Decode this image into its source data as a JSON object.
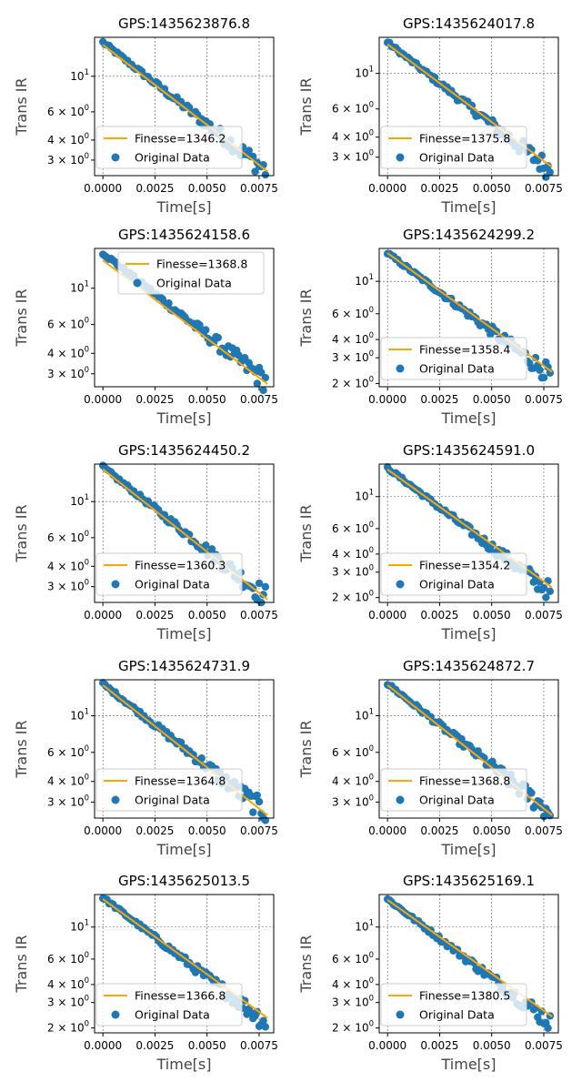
{
  "chart_data": [
    {
      "type": "scatter",
      "title": "GPS:1435623876.8",
      "xlabel": "Time[s]",
      "ylabel": "Trans IR",
      "yscale": "log",
      "xlim": [
        -0.0004,
        0.0082
      ],
      "ylim": [
        2.4,
        17.5
      ],
      "x_ticks": [
        "0.0000",
        "0.0025",
        "0.0050",
        "0.0075"
      ],
      "y_ticks": [
        {
          "value": 3,
          "label": "3 × 10^0"
        },
        {
          "value": 4,
          "label": "4 × 10^0"
        },
        {
          "value": 6,
          "label": "6 × 10^0"
        },
        {
          "value": 10,
          "label": "10^1"
        }
      ],
      "grid": true,
      "legend_position": "lower-left",
      "series": [
        {
          "name": "Finesse=1346.2",
          "kind": "fit-line",
          "color": "#ffa500",
          "x": [
            0.0,
            0.0079
          ],
          "y": [
            15.7,
            2.55
          ]
        },
        {
          "name": "Original Data",
          "kind": "scatter",
          "color": "#1f77b4",
          "x_range": [
            0.0,
            0.0078
          ],
          "y_start": 16.3,
          "y_end": 2.6
        }
      ]
    },
    {
      "type": "scatter",
      "title": "GPS:1435624017.8",
      "xlabel": "Time[s]",
      "ylabel": "Trans IR",
      "yscale": "log",
      "xlim": [
        -0.0004,
        0.0082
      ],
      "ylim": [
        2.3,
        16.8
      ],
      "x_ticks": [
        "0.0000",
        "0.0025",
        "0.0050",
        "0.0075"
      ],
      "y_ticks": [
        {
          "value": 3,
          "label": "3 × 10^0"
        },
        {
          "value": 4,
          "label": "4 × 10^0"
        },
        {
          "value": 6,
          "label": "6 × 10^0"
        },
        {
          "value": 10,
          "label": "10^1"
        }
      ],
      "grid": true,
      "legend_position": "lower-left",
      "series": [
        {
          "name": "Finesse=1375.8",
          "kind": "fit-line",
          "color": "#ffa500",
          "x": [
            0.0,
            0.0079
          ],
          "y": [
            15.2,
            2.6
          ]
        },
        {
          "name": "Original Data",
          "kind": "scatter",
          "color": "#1f77b4",
          "x_range": [
            0.0,
            0.0078
          ],
          "y_start": 15.6,
          "y_end": 2.5
        }
      ]
    },
    {
      "type": "scatter",
      "title": "GPS:1435624158.6",
      "xlabel": "Time[s]",
      "ylabel": "Trans IR",
      "yscale": "log",
      "xlim": [
        -0.0004,
        0.0082
      ],
      "ylim": [
        2.5,
        17.5
      ],
      "x_ticks": [
        "0.0000",
        "0.0025",
        "0.0050",
        "0.0075"
      ],
      "y_ticks": [
        {
          "value": 3,
          "label": "3 × 10^0"
        },
        {
          "value": 4,
          "label": "4 × 10^0"
        },
        {
          "value": 6,
          "label": "6 × 10^0"
        },
        {
          "value": 10,
          "label": "10^1"
        }
      ],
      "grid": false,
      "legend_position": "upper-right",
      "series": [
        {
          "name": "Finesse=1368.8",
          "kind": "fit-line",
          "color": "#ffa500",
          "x": [
            0.0,
            0.0079
          ],
          "y": [
            14.8,
            2.6
          ]
        },
        {
          "name": "Original Data",
          "kind": "scatter",
          "color": "#1f77b4",
          "x_range": [
            0.0,
            0.0078
          ],
          "y_start": 16.4,
          "y_end": 2.7
        }
      ]
    },
    {
      "type": "scatter",
      "title": "GPS:1435624299.2",
      "xlabel": "Time[s]",
      "ylabel": "Trans IR",
      "yscale": "log",
      "xlim": [
        -0.0004,
        0.0082
      ],
      "ylim": [
        1.9,
        16.8
      ],
      "x_ticks": [
        "0.0000",
        "0.0025",
        "0.0050",
        "0.0075"
      ],
      "y_ticks": [
        {
          "value": 2,
          "label": "2 × 10^0"
        },
        {
          "value": 3,
          "label": "3 × 10^0"
        },
        {
          "value": 4,
          "label": "4 × 10^0"
        },
        {
          "value": 6,
          "label": "6 × 10^0"
        },
        {
          "value": 10,
          "label": "10^1"
        }
      ],
      "grid": true,
      "legend_position": "lower-left",
      "series": [
        {
          "name": "Finesse=1358.4",
          "kind": "fit-line",
          "color": "#ffa500",
          "x": [
            0.0,
            0.0079
          ],
          "y": [
            15.6,
            2.4
          ]
        },
        {
          "name": "Original Data",
          "kind": "scatter",
          "color": "#1f77b4",
          "x_range": [
            0.0,
            0.0078
          ],
          "y_start": 15.6,
          "y_end": 2.3
        }
      ]
    },
    {
      "type": "scatter",
      "title": "GPS:1435624450.2",
      "xlabel": "Time[s]",
      "ylabel": "Trans IR",
      "yscale": "log",
      "xlim": [
        -0.0004,
        0.0082
      ],
      "ylim": [
        2.4,
        17.0
      ],
      "x_ticks": [
        "0.0000",
        "0.0025",
        "0.0050",
        "0.0075"
      ],
      "y_ticks": [
        {
          "value": 3,
          "label": "3 × 10^0"
        },
        {
          "value": 4,
          "label": "4 × 10^0"
        },
        {
          "value": 6,
          "label": "6 × 10^0"
        },
        {
          "value": 10,
          "label": "10^1"
        }
      ],
      "grid": true,
      "legend_position": "lower-left",
      "series": [
        {
          "name": "Finesse=1360.3",
          "kind": "fit-line",
          "color": "#ffa500",
          "x": [
            0.0,
            0.0079
          ],
          "y": [
            15.8,
            2.5
          ]
        },
        {
          "name": "Original Data",
          "kind": "scatter",
          "color": "#1f77b4",
          "x_range": [
            0.0,
            0.0078
          ],
          "y_start": 16.3,
          "y_end": 2.6
        }
      ]
    },
    {
      "type": "scatter",
      "title": "GPS:1435624591.0",
      "xlabel": "Time[s]",
      "ylabel": "Trans IR",
      "yscale": "log",
      "xlim": [
        -0.0004,
        0.0082
      ],
      "ylim": [
        1.85,
        16.8
      ],
      "x_ticks": [
        "0.0000",
        "0.0025",
        "0.0050",
        "0.0075"
      ],
      "y_ticks": [
        {
          "value": 2,
          "label": "2 × 10^0"
        },
        {
          "value": 3,
          "label": "3 × 10^0"
        },
        {
          "value": 4,
          "label": "4 × 10^0"
        },
        {
          "value": 6,
          "label": "6 × 10^0"
        },
        {
          "value": 10,
          "label": "10^1"
        }
      ],
      "grid": true,
      "legend_position": "lower-left",
      "series": [
        {
          "name": "Finesse=1354.2",
          "kind": "fit-line",
          "color": "#ffa500",
          "x": [
            0.0,
            0.0079
          ],
          "y": [
            15.4,
            2.35
          ]
        },
        {
          "name": "Original Data",
          "kind": "scatter",
          "color": "#1f77b4",
          "x_range": [
            0.0,
            0.0078
          ],
          "y_start": 15.8,
          "y_end": 2.2
        }
      ]
    },
    {
      "type": "scatter",
      "title": "GPS:1435624731.9",
      "xlabel": "Time[s]",
      "ylabel": "Trans IR",
      "yscale": "log",
      "xlim": [
        -0.0004,
        0.0082
      ],
      "ylim": [
        2.4,
        16.5
      ],
      "x_ticks": [
        "0.0000",
        "0.0025",
        "0.0050",
        "0.0075"
      ],
      "y_ticks": [
        {
          "value": 3,
          "label": "3 × 10^0"
        },
        {
          "value": 4,
          "label": "4 × 10^0"
        },
        {
          "value": 6,
          "label": "6 × 10^0"
        },
        {
          "value": 10,
          "label": "10^1"
        }
      ],
      "grid": true,
      "legend_position": "lower-left",
      "series": [
        {
          "name": "Finesse=1364.8",
          "kind": "fit-line",
          "color": "#ffa500",
          "x": [
            0.0,
            0.0079
          ],
          "y": [
            15.3,
            2.5
          ]
        },
        {
          "name": "Original Data",
          "kind": "scatter",
          "color": "#1f77b4",
          "x_range": [
            0.0,
            0.0078
          ],
          "y_start": 15.6,
          "y_end": 2.6
        }
      ]
    },
    {
      "type": "scatter",
      "title": "GPS:1435624872.7",
      "xlabel": "Time[s]",
      "ylabel": "Trans IR",
      "yscale": "log",
      "xlim": [
        -0.0004,
        0.0082
      ],
      "ylim": [
        2.4,
        16.5
      ],
      "x_ticks": [
        "0.0000",
        "0.0025",
        "0.0050",
        "0.0075"
      ],
      "y_ticks": [
        {
          "value": 3,
          "label": "3 × 10^0"
        },
        {
          "value": 4,
          "label": "4 × 10^0"
        },
        {
          "value": 6,
          "label": "6 × 10^0"
        },
        {
          "value": 10,
          "label": "10^1"
        }
      ],
      "grid": true,
      "legend_position": "lower-left",
      "series": [
        {
          "name": "Finesse=1368.8",
          "kind": "fit-line",
          "color": "#ffa500",
          "x": [
            0.0,
            0.0079
          ],
          "y": [
            15.3,
            2.5
          ]
        },
        {
          "name": "Original Data",
          "kind": "scatter",
          "color": "#1f77b4",
          "x_range": [
            0.0,
            0.0078
          ],
          "y_start": 15.6,
          "y_end": 2.6
        }
      ]
    },
    {
      "type": "scatter",
      "title": "GPS:1435625013.5",
      "xlabel": "Time[s]",
      "ylabel": "Trans IR",
      "yscale": "log",
      "xlim": [
        -0.0004,
        0.0082
      ],
      "ylim": [
        1.85,
        16.8
      ],
      "x_ticks": [
        "0.0000",
        "0.0025",
        "0.0050",
        "0.0075"
      ],
      "y_ticks": [
        {
          "value": 2,
          "label": "2 × 10^0"
        },
        {
          "value": 3,
          "label": "3 × 10^0"
        },
        {
          "value": 4,
          "label": "4 × 10^0"
        },
        {
          "value": 6,
          "label": "6 × 10^0"
        },
        {
          "value": 10,
          "label": "10^1"
        }
      ],
      "grid": true,
      "legend_position": "lower-left",
      "series": [
        {
          "name": "Finesse=1366.8",
          "kind": "fit-line",
          "color": "#ffa500",
          "x": [
            0.0,
            0.0079
          ],
          "y": [
            15.6,
            2.35
          ]
        },
        {
          "name": "Original Data",
          "kind": "scatter",
          "color": "#1f77b4",
          "x_range": [
            0.0,
            0.0078
          ],
          "y_start": 16.0,
          "y_end": 2.2
        }
      ]
    },
    {
      "type": "scatter",
      "title": "GPS:1435625169.1",
      "xlabel": "Time[s]",
      "ylabel": "Trans IR",
      "yscale": "log",
      "xlim": [
        -0.0004,
        0.0082
      ],
      "ylim": [
        1.85,
        16.8
      ],
      "x_ticks": [
        "0.0000",
        "0.0025",
        "0.0050",
        "0.0075"
      ],
      "y_ticks": [
        {
          "value": 2,
          "label": "2 × 10^0"
        },
        {
          "value": 3,
          "label": "3 × 10^0"
        },
        {
          "value": 4,
          "label": "4 × 10^0"
        },
        {
          "value": 6,
          "label": "6 × 10^0"
        },
        {
          "value": 10,
          "label": "10^1"
        }
      ],
      "grid": true,
      "legend_position": "lower-left",
      "series": [
        {
          "name": "Finesse=1380.5",
          "kind": "fit-line",
          "color": "#ffa500",
          "x": [
            0.0,
            0.0079
          ],
          "y": [
            15.4,
            2.4
          ]
        },
        {
          "name": "Original Data",
          "kind": "scatter",
          "color": "#1f77b4",
          "x_range": [
            0.0,
            0.0078
          ],
          "y_start": 15.6,
          "y_end": 2.2
        }
      ]
    }
  ]
}
